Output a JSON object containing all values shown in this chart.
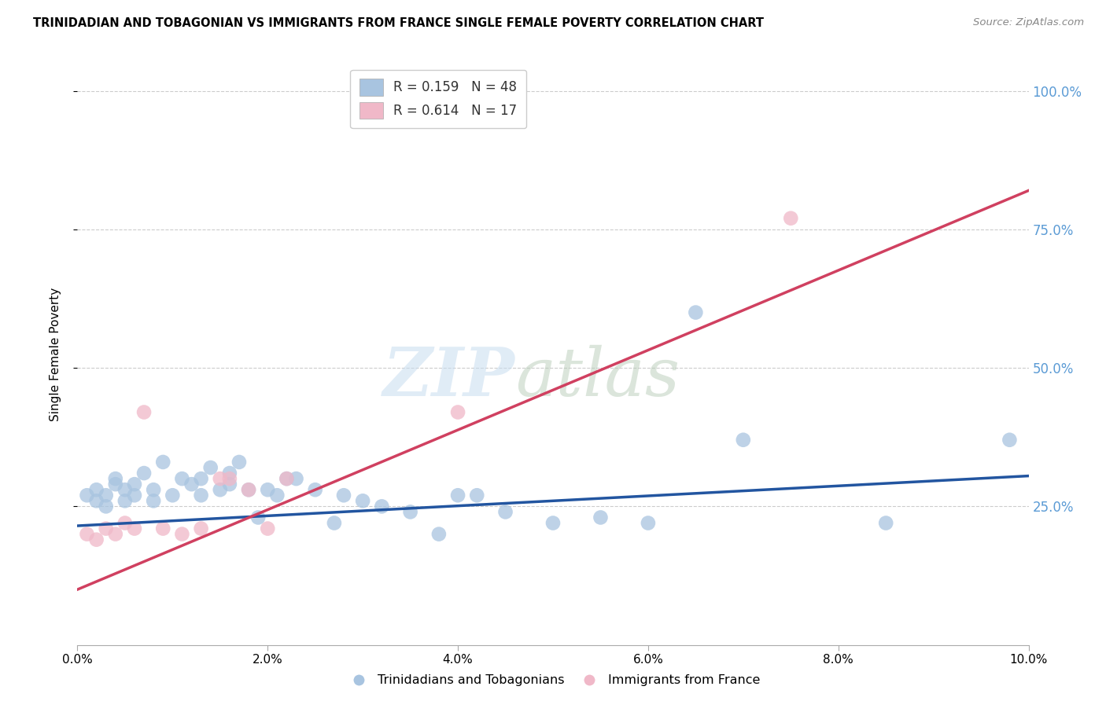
{
  "title": "TRINIDADIAN AND TOBAGONIAN VS IMMIGRANTS FROM FRANCE SINGLE FEMALE POVERTY CORRELATION CHART",
  "source": "Source: ZipAtlas.com",
  "ylabel": "Single Female Poverty",
  "xlim": [
    0.0,
    0.1
  ],
  "ylim": [
    0.0,
    1.05
  ],
  "xtick_labels": [
    "0.0%",
    "2.0%",
    "4.0%",
    "6.0%",
    "8.0%",
    "10.0%"
  ],
  "xtick_vals": [
    0.0,
    0.02,
    0.04,
    0.06,
    0.08,
    0.1
  ],
  "ytick_labels": [
    "100.0%",
    "75.0%",
    "50.0%",
    "25.0%"
  ],
  "ytick_vals": [
    1.0,
    0.75,
    0.5,
    0.25
  ],
  "legend_labels_bottom": [
    "Trinidadians and Tobagonians",
    "Immigrants from France"
  ],
  "blue_scatter_color": "#a8c4e0",
  "pink_scatter_color": "#f0b8c8",
  "blue_line_color": "#2255a0",
  "pink_line_color": "#d04060",
  "blue_x": [
    0.001,
    0.002,
    0.002,
    0.003,
    0.003,
    0.004,
    0.004,
    0.005,
    0.005,
    0.006,
    0.006,
    0.007,
    0.008,
    0.008,
    0.009,
    0.01,
    0.011,
    0.012,
    0.013,
    0.013,
    0.014,
    0.015,
    0.016,
    0.016,
    0.017,
    0.018,
    0.019,
    0.02,
    0.021,
    0.022,
    0.023,
    0.025,
    0.027,
    0.028,
    0.03,
    0.032,
    0.035,
    0.038,
    0.04,
    0.042,
    0.045,
    0.05,
    0.055,
    0.06,
    0.065,
    0.07,
    0.085,
    0.098
  ],
  "blue_y": [
    0.27,
    0.26,
    0.28,
    0.25,
    0.27,
    0.29,
    0.3,
    0.26,
    0.28,
    0.27,
    0.29,
    0.31,
    0.26,
    0.28,
    0.33,
    0.27,
    0.3,
    0.29,
    0.3,
    0.27,
    0.32,
    0.28,
    0.31,
    0.29,
    0.33,
    0.28,
    0.23,
    0.28,
    0.27,
    0.3,
    0.3,
    0.28,
    0.22,
    0.27,
    0.26,
    0.25,
    0.24,
    0.2,
    0.27,
    0.27,
    0.24,
    0.22,
    0.23,
    0.22,
    0.6,
    0.37,
    0.22,
    0.37
  ],
  "pink_x": [
    0.001,
    0.002,
    0.003,
    0.004,
    0.005,
    0.006,
    0.007,
    0.009,
    0.011,
    0.013,
    0.015,
    0.016,
    0.018,
    0.02,
    0.022,
    0.04,
    0.075
  ],
  "pink_y": [
    0.2,
    0.19,
    0.21,
    0.2,
    0.22,
    0.21,
    0.42,
    0.21,
    0.2,
    0.21,
    0.3,
    0.3,
    0.28,
    0.21,
    0.3,
    0.42,
    0.77
  ],
  "blue_line_x0": 0.0,
  "blue_line_x1": 0.1,
  "blue_line_y0": 0.215,
  "blue_line_y1": 0.305,
  "pink_line_x0": 0.0,
  "pink_line_x1": 0.1,
  "pink_line_y0": 0.1,
  "pink_line_y1": 0.82
}
